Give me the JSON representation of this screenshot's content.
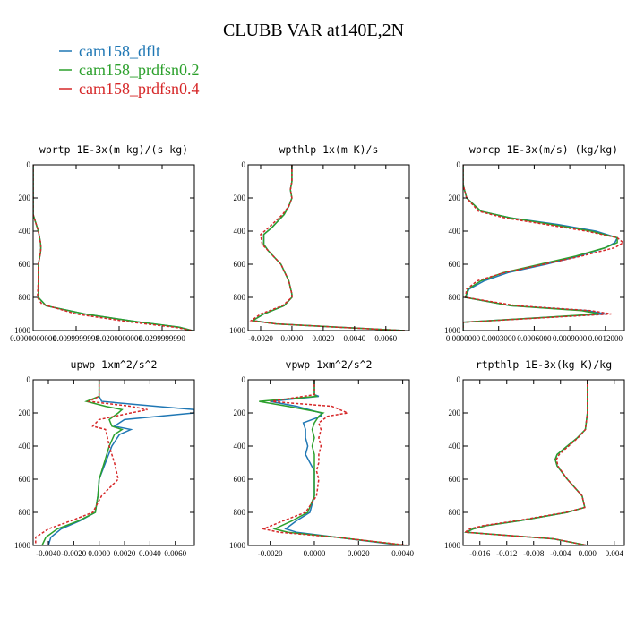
{
  "figure": {
    "title": "CLUBB VAR at140E,2N",
    "legend": [
      {
        "name": "cam158_dflt",
        "color": "#1f77b4",
        "dash": "solid"
      },
      {
        "name": "cam158_prdfsn0.2",
        "color": "#2ca02c",
        "dash": "solid"
      },
      {
        "name": "cam158_prdfsn0.4",
        "color": "#d62728",
        "dash": "dashed"
      }
    ]
  },
  "chart_data": [
    {
      "type": "line",
      "title": "wprtp  1E-3x(m kg)/(s kg)",
      "xlim": [
        0,
        0.0375
      ],
      "ylim": [
        1000,
        0
      ],
      "xticks": [
        0,
        0.01,
        0.02,
        0.03
      ],
      "xtick_labels": [
        "0.0000000000",
        "0.0099999998",
        "0.0200000000",
        "0.0299999990"
      ],
      "yticks": [
        0,
        200,
        400,
        600,
        800,
        1000
      ],
      "series": [
        {
          "name": "cam158_dflt",
          "y": [
            0,
            300,
            400,
            470,
            500,
            530,
            600,
            700,
            800,
            850,
            900,
            950,
            980,
            1000
          ],
          "x": [
            0,
            0,
            0.0012,
            0.0017,
            0.0018,
            0.0017,
            0.0012,
            0.0012,
            0.0012,
            0.003,
            0.012,
            0.025,
            0.034,
            0.037
          ]
        },
        {
          "name": "cam158_prdfsn0.2",
          "y": [
            0,
            300,
            400,
            470,
            500,
            530,
            600,
            700,
            800,
            850,
            900,
            950,
            980,
            1000
          ],
          "x": [
            0,
            0,
            0.0012,
            0.0017,
            0.0018,
            0.0017,
            0.0012,
            0.0012,
            0.0012,
            0.003,
            0.012,
            0.025,
            0.034,
            0.037
          ]
        },
        {
          "name": "cam158_prdfsn0.4",
          "y": [
            0,
            300,
            400,
            470,
            500,
            530,
            600,
            700,
            800,
            840,
            900,
            950,
            980,
            1000
          ],
          "x": [
            0,
            0,
            0.0012,
            0.0017,
            0.0018,
            0.0017,
            0.0012,
            0.0012,
            0.001,
            0.002,
            0.01,
            0.023,
            0.033,
            0.037
          ]
        }
      ]
    },
    {
      "type": "line",
      "title": "wpthlp  1x(m K)/s",
      "xlim": [
        -0.0028,
        0.0075
      ],
      "ylim": [
        1000,
        0
      ],
      "xticks": [
        -0.002,
        0,
        0.002,
        0.004,
        0.006
      ],
      "xtick_labels": [
        "-0.0020",
        "0.0000",
        "0.0020",
        "0.0040",
        "0.0060"
      ],
      "yticks": [
        0,
        200,
        400,
        600,
        800,
        1000
      ],
      "series": [
        {
          "name": "cam158_dflt",
          "y": [
            0,
            100,
            150,
            200,
            250,
            300,
            380,
            420,
            480,
            520,
            600,
            700,
            780,
            800,
            850,
            900,
            940,
            960,
            980,
            1000
          ],
          "x": [
            0,
            0,
            -0.0001,
            0,
            -0.0002,
            -0.0005,
            -0.0013,
            -0.0018,
            -0.0018,
            -0.0015,
            -0.0007,
            -0.0002,
            0,
            0,
            -0.0005,
            -0.0018,
            -0.0025,
            -0.001,
            0.003,
            0.0072
          ]
        },
        {
          "name": "cam158_prdfsn0.2",
          "y": [
            0,
            100,
            150,
            200,
            250,
            300,
            380,
            420,
            480,
            520,
            600,
            700,
            780,
            800,
            850,
            900,
            940,
            960,
            980,
            1000
          ],
          "x": [
            0,
            0,
            -0.0001,
            0,
            -0.0002,
            -0.0005,
            -0.0013,
            -0.0018,
            -0.0018,
            -0.0015,
            -0.0007,
            -0.0002,
            0,
            0,
            -0.0005,
            -0.0018,
            -0.0025,
            -0.001,
            0.003,
            0.0072
          ]
        },
        {
          "name": "cam158_prdfsn0.4",
          "y": [
            0,
            100,
            150,
            200,
            250,
            300,
            380,
            420,
            480,
            520,
            600,
            700,
            780,
            800,
            850,
            900,
            940,
            960,
            980,
            1000
          ],
          "x": [
            0,
            0,
            -0.0001,
            0,
            -0.0002,
            -0.0006,
            -0.0015,
            -0.002,
            -0.0019,
            -0.0015,
            -0.0007,
            -0.0002,
            0,
            0,
            -0.0006,
            -0.002,
            -0.0026,
            -0.001,
            0.003,
            0.0072
          ]
        }
      ]
    },
    {
      "type": "line",
      "title": "wprcp  1E-3x(m/s) (kg/kg)",
      "xlim": [
        0,
        0.00136
      ],
      "ylim": [
        1000,
        0
      ],
      "xticks": [
        0,
        0.0003,
        0.0006,
        0.0009,
        0.0012
      ],
      "xtick_labels": [
        "0.0000000",
        "0.0003000",
        "0.0006000",
        "0.0009000",
        "0.0012000"
      ],
      "yticks": [
        0,
        200,
        400,
        600,
        800,
        1000
      ],
      "series": [
        {
          "name": "cam158_dflt",
          "y": [
            0,
            120,
            200,
            280,
            320,
            360,
            400,
            440,
            470,
            500,
            550,
            600,
            650,
            700,
            750,
            800,
            850,
            880,
            900,
            920,
            950,
            1000
          ],
          "x": [
            0,
            0,
            3e-05,
            0.00015,
            0.0004,
            0.0008,
            0.00112,
            0.0013,
            0.00128,
            0.0012,
            0.00098,
            0.0007,
            0.00038,
            0.00018,
            5e-05,
            2e-05,
            0.0004,
            0.00105,
            0.0012,
            0.0007,
            0,
            0
          ]
        },
        {
          "name": "cam158_prdfsn0.2",
          "y": [
            0,
            120,
            200,
            280,
            320,
            360,
            400,
            440,
            470,
            500,
            550,
            600,
            650,
            700,
            750,
            800,
            850,
            880,
            900,
            920,
            950,
            1000
          ],
          "x": [
            0,
            0,
            3e-05,
            0.00015,
            0.0004,
            0.00075,
            0.00108,
            0.0013,
            0.0013,
            0.0012,
            0.00095,
            0.00065,
            0.00034,
            0.00015,
            4e-05,
            2e-05,
            0.0004,
            0.001,
            0.00115,
            0.0007,
            0,
            0
          ]
        },
        {
          "name": "cam158_prdfsn0.4",
          "y": [
            0,
            120,
            200,
            280,
            320,
            360,
            400,
            440,
            470,
            500,
            550,
            600,
            650,
            700,
            750,
            800,
            850,
            880,
            900,
            920,
            950,
            1000
          ],
          "x": [
            0,
            0,
            3e-05,
            0.00013,
            0.00035,
            0.0007,
            0.00104,
            0.0013,
            0.00135,
            0.00128,
            0.001,
            0.00068,
            0.00035,
            0.00012,
            3e-05,
            2e-05,
            0.00045,
            0.00108,
            0.00125,
            0.00075,
            0,
            0
          ]
        }
      ]
    },
    {
      "type": "line",
      "title": "upwp  1xm^2/s^2",
      "xlim": [
        -0.0052,
        0.0075
      ],
      "ylim": [
        1000,
        0
      ],
      "xticks": [
        -0.004,
        -0.002,
        0,
        0.002,
        0.004,
        0.006
      ],
      "xtick_labels": [
        "-0.0040",
        "-0.0020",
        "0.0000",
        "0.0020",
        "0.0040",
        "0.0060"
      ],
      "yticks": [
        0,
        200,
        400,
        600,
        800,
        1000
      ],
      "series": [
        {
          "name": "cam158_dflt",
          "y": [
            0,
            100,
            130,
            160,
            180,
            200,
            240,
            280,
            300,
            330,
            400,
            500,
            600,
            700,
            800,
            850,
            900,
            950,
            1000
          ],
          "x": [
            0,
            0,
            0.0002,
            0.0045,
            0.0075,
            0.0075,
            0.002,
            0.0012,
            0.0025,
            0.0016,
            0.001,
            0.0005,
            0,
            -0.0001,
            -0.0003,
            -0.0015,
            -0.003,
            -0.0038,
            -0.004
          ]
        },
        {
          "name": "cam158_prdfsn0.2",
          "y": [
            0,
            100,
            130,
            160,
            180,
            200,
            240,
            280,
            300,
            330,
            400,
            500,
            600,
            700,
            800,
            850,
            900,
            950,
            1000
          ],
          "x": [
            0,
            0,
            -0.001,
            0.0005,
            0.0018,
            0.0015,
            0.0008,
            0.001,
            0.0018,
            0.0012,
            0.0008,
            0.0004,
            0,
            -0.0001,
            -0.0003,
            -0.0016,
            -0.0033,
            -0.0042,
            -0.0045
          ]
        },
        {
          "name": "cam158_prdfsn0.4",
          "y": [
            0,
            100,
            130,
            160,
            180,
            200,
            240,
            280,
            300,
            330,
            400,
            500,
            600,
            700,
            800,
            850,
            900,
            950,
            1000
          ],
          "x": [
            0,
            0,
            -0.0008,
            0.0025,
            0.0038,
            0.0025,
            0,
            -0.0005,
            0.0005,
            0.0006,
            0.0008,
            0.0012,
            0.0015,
            0.0002,
            -0.0005,
            -0.0022,
            -0.004,
            -0.005,
            -0.005
          ]
        }
      ]
    },
    {
      "type": "line",
      "title": "vpwp  1xm^2/s^2",
      "xlim": [
        -0.003,
        0.0043
      ],
      "ylim": [
        1000,
        0
      ],
      "xticks": [
        -0.002,
        0,
        0.002,
        0.004
      ],
      "xtick_labels": [
        "-0.0020",
        "0.0000",
        "0.0020",
        "0.0040"
      ],
      "yticks": [
        0,
        200,
        400,
        600,
        800,
        1000
      ],
      "series": [
        {
          "name": "cam158_dflt",
          "y": [
            0,
            90,
            100,
            130,
            160,
            200,
            220,
            260,
            300,
            350,
            400,
            450,
            500,
            550,
            600,
            700,
            800,
            850,
            900,
            920,
            950,
            1000
          ],
          "x": [
            0,
            0,
            0.0002,
            -0.002,
            -0.0008,
            0.0003,
            0.0003,
            -0.0005,
            -0.0004,
            -0.0004,
            -0.0003,
            -0.0004,
            -0.0002,
            0,
            0,
            0,
            -0.0002,
            -0.0008,
            -0.0013,
            -0.0008,
            0.001,
            0.004
          ]
        },
        {
          "name": "cam158_prdfsn0.2",
          "y": [
            0,
            90,
            100,
            130,
            160,
            200,
            220,
            260,
            300,
            350,
            400,
            450,
            500,
            550,
            600,
            700,
            800,
            850,
            900,
            920,
            950,
            1000
          ],
          "x": [
            0,
            0,
            0.0001,
            -0.0025,
            -0.0012,
            0.0004,
            0.0002,
            0,
            -0.0001,
            0,
            -0.0001,
            0,
            0,
            0,
            0,
            0,
            -0.0003,
            -0.001,
            -0.0018,
            -0.0012,
            0.001,
            0.0042
          ]
        },
        {
          "name": "cam158_prdfsn0.4",
          "y": [
            0,
            90,
            100,
            130,
            160,
            200,
            220,
            260,
            300,
            350,
            400,
            450,
            500,
            550,
            600,
            700,
            800,
            850,
            900,
            920,
            950,
            1000
          ],
          "x": [
            0,
            0,
            -0.0005,
            -0.002,
            0.0008,
            0.0015,
            0.0006,
            0.0002,
            0.0003,
            0.0002,
            0.0003,
            0.0002,
            0.0002,
            0.0001,
            0.0002,
            0.0001,
            -0.0004,
            -0.0014,
            -0.0023,
            -0.0016,
            0.001,
            0.0043
          ]
        }
      ]
    },
    {
      "type": "line",
      "title": "rtpthlp  1E-3x(kg K)/kg",
      "xlim": [
        -0.0185,
        0.0055
      ],
      "ylim": [
        1000,
        0
      ],
      "xticks": [
        -0.016,
        -0.012,
        -0.008,
        -0.004,
        0,
        0.004
      ],
      "xtick_labels": [
        "-0.016",
        "-0.012",
        "-0.008",
        "-0.004",
        "0.000",
        "0.004"
      ],
      "yticks": [
        0,
        200,
        400,
        600,
        800,
        1000
      ],
      "series": [
        {
          "name": "cam158_dflt",
          "y": [
            0,
            200,
            300,
            350,
            400,
            450,
            480,
            520,
            600,
            700,
            770,
            800,
            850,
            880,
            900,
            920,
            960,
            1000
          ],
          "x": [
            0,
            0,
            -0.0003,
            -0.0015,
            -0.003,
            -0.0045,
            -0.0048,
            -0.0045,
            -0.003,
            -0.0008,
            -0.0004,
            -0.003,
            -0.01,
            -0.015,
            -0.017,
            -0.018,
            -0.005,
            0
          ]
        },
        {
          "name": "cam158_prdfsn0.2",
          "y": [
            0,
            200,
            300,
            350,
            400,
            450,
            480,
            520,
            600,
            700,
            770,
            800,
            850,
            880,
            900,
            920,
            960,
            1000
          ],
          "x": [
            0,
            0,
            -0.0003,
            -0.0015,
            -0.003,
            -0.0045,
            -0.0048,
            -0.0045,
            -0.003,
            -0.0008,
            -0.0004,
            -0.003,
            -0.01,
            -0.015,
            -0.017,
            -0.018,
            -0.005,
            0
          ]
        },
        {
          "name": "cam158_prdfsn0.4",
          "y": [
            0,
            200,
            300,
            350,
            400,
            450,
            480,
            520,
            600,
            700,
            770,
            800,
            850,
            880,
            900,
            920,
            960,
            1000
          ],
          "x": [
            0,
            0,
            -0.0003,
            -0.0014,
            -0.0028,
            -0.0042,
            -0.0046,
            -0.0044,
            -0.003,
            -0.0008,
            -0.0004,
            -0.0032,
            -0.0105,
            -0.0155,
            -0.0175,
            -0.0182,
            -0.005,
            0
          ]
        }
      ]
    }
  ]
}
